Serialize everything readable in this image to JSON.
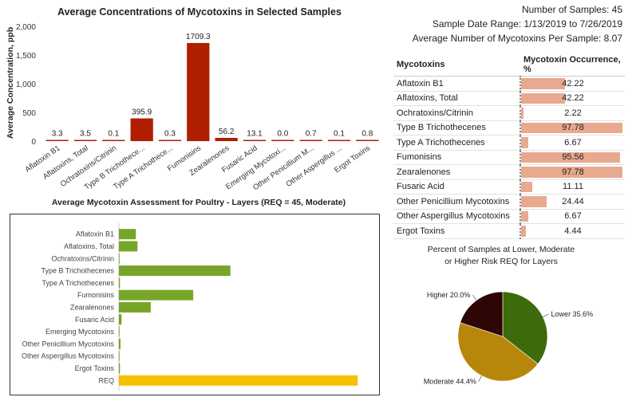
{
  "info": {
    "samples": "Number of Samples: 45",
    "date_range": "Sample Date Range: 1/13/2019 to 7/26/2019",
    "avg_mycotoxins": "Average Number of Mycotoxins Per Sample: 8.07"
  },
  "table": {
    "col1": "Mycotoxins",
    "col2": "Mycotoxin Occurrence, %",
    "rows": [
      {
        "name": "Aflatoxin B1",
        "value": 42.22
      },
      {
        "name": "Aflatoxins, Total",
        "value": 42.22
      },
      {
        "name": "Ochratoxins/Citrinin",
        "value": 2.22
      },
      {
        "name": "Type B Trichothecenes",
        "value": 97.78
      },
      {
        "name": "Type A Trichothecenes",
        "value": 6.67
      },
      {
        "name": "Fumonisins",
        "value": 95.56
      },
      {
        "name": "Zearalenones",
        "value": 97.78
      },
      {
        "name": "Fusaric Acid",
        "value": 11.11
      },
      {
        "name": "Other Penicillium Mycotoxins",
        "value": 24.44
      },
      {
        "name": "Other Aspergillus Mycotoxins",
        "value": 6.67
      },
      {
        "name": "Ergot Toxins",
        "value": 4.44
      }
    ]
  },
  "colors": {
    "dark_red": "#b01e00",
    "green": "#77a52a",
    "gold": "#f6c100",
    "table_bar": "#e8a98f",
    "pie_lower": "#3d6a0a",
    "pie_moderate": "#b8860b",
    "pie_higher": "#2e0606"
  },
  "chart_data": [
    {
      "type": "bar",
      "title": "Average Concentrations of Mycotoxins in Selected Samples",
      "ylabel": "Average Concentration, ppb",
      "ylim": [
        0,
        2000
      ],
      "yticks": [
        "0",
        "500",
        "1,000",
        "1,500",
        "2,000"
      ],
      "categories": [
        "Aflatoxin B1",
        "Aflatoxins, Total",
        "Ochratoxins/Citrinin",
        "Type B Trichothece...",
        "Type A Trichothece...",
        "Fumonisins",
        "Zearalenones",
        "Fusaric Acid",
        "Emerging Mycotoxi...",
        "Other Penicillium M...",
        "Other Aspergillus ...",
        "Ergot Toxins"
      ],
      "values": [
        3.3,
        3.5,
        0.1,
        395.9,
        0.3,
        1709.3,
        56.2,
        13.1,
        0.0,
        0.7,
        0.1,
        0.8
      ],
      "labels": [
        "3.3",
        "3.5",
        "0.1",
        "395.9",
        "0.3",
        "1709.3",
        "56.2",
        "13.1",
        "0.0",
        "0.7",
        "0.1",
        "0.8"
      ]
    },
    {
      "type": "bar",
      "orientation": "horizontal",
      "title": "Average Mycotoxin Assessment for Poultry - Layers (REQ = 45, Moderate)",
      "categories": [
        "Aflatoxin B1",
        "Aflatoxins, Total",
        "Ochratoxins/Citrinin",
        "Type B Trichothecenes",
        "Type A Trichothecenes",
        "Fumonisins",
        "Zearalenones",
        "Fusaric Acid",
        "Emerging Mycotoxins",
        "Other Penicillium Mycotoxins",
        "Other Aspergillus Mycotoxins",
        "Ergot Toxins",
        "REQ"
      ],
      "values": [
        3.2,
        3.5,
        0.1,
        21,
        0.2,
        14,
        6,
        0.5,
        0,
        0.3,
        0.1,
        0.2,
        45
      ],
      "xlim": [
        0,
        46
      ]
    },
    {
      "type": "pie",
      "title_line1": "Percent of Samples at Lower, Moderate",
      "title_line2": "or Higher Risk REQ for Layers",
      "slices": [
        {
          "name": "Lower",
          "value": 35.6,
          "label": "Lower 35.6%"
        },
        {
          "name": "Moderate",
          "value": 44.4,
          "label": "Moderate 44.4%"
        },
        {
          "name": "Higher",
          "value": 20.0,
          "label": "Higher 20.0%"
        }
      ]
    }
  ]
}
